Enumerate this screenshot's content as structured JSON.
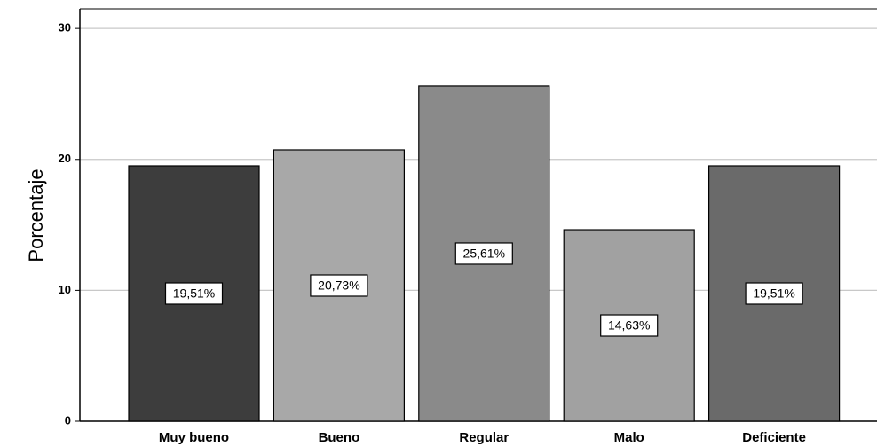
{
  "chart_data": {
    "type": "bar",
    "categories": [
      "Muy bueno",
      "Bueno",
      "Regular",
      "Malo",
      "Deficiente"
    ],
    "values": [
      19.51,
      20.73,
      25.61,
      14.63,
      19.51
    ],
    "data_labels": [
      "19,51%",
      "20,73%",
      "25,61%",
      "14,63%",
      "19,51%"
    ],
    "bar_colors": [
      "#3d3d3d",
      "#a8a8a8",
      "#8a8a8a",
      "#a1a1a1",
      "#6a6a6a"
    ],
    "xlabel": "",
    "ylabel": "Porcentaje",
    "yticks": [
      0,
      10,
      20,
      30
    ],
    "ylim": [
      0,
      31.5
    ],
    "grid": true,
    "legend": "none"
  }
}
